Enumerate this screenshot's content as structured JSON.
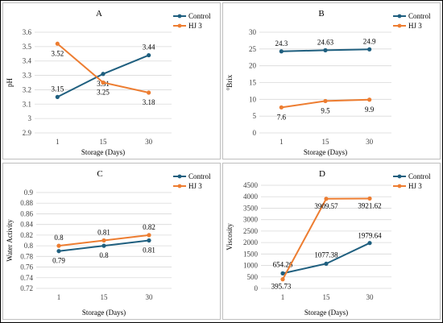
{
  "colors": {
    "control": "#1f5f7f",
    "hj3": "#ed7d31",
    "grid": "#d9d9d9"
  },
  "chart_data": [
    {
      "type": "line",
      "title": "A",
      "xlabel": "Storage (Days)",
      "ylabel": "pH",
      "categories": [
        "1",
        "15",
        "30"
      ],
      "ylim": [
        2.9,
        3.6
      ],
      "yticks": [
        "2.9",
        "3",
        "3.1",
        "3.2",
        "3.3",
        "3.4",
        "3.5",
        "3.6"
      ],
      "legend": "top-right",
      "series": [
        {
          "name": "Control",
          "values": [
            3.15,
            3.31,
            3.44
          ],
          "labels": [
            "3.15",
            "3.31",
            "3.44"
          ]
        },
        {
          "name": "HJ 3",
          "values": [
            3.52,
            3.25,
            3.18
          ],
          "labels": [
            "3.52",
            "3.25",
            "3.18"
          ]
        }
      ]
    },
    {
      "type": "line",
      "title": "B",
      "xlabel": "Storage (Days)",
      "ylabel": "°Brix",
      "categories": [
        "1",
        "15",
        "30"
      ],
      "ylim": [
        0,
        30
      ],
      "yticks": [
        "0",
        "5",
        "10",
        "15",
        "20",
        "25",
        "30"
      ],
      "legend": "top-right",
      "series": [
        {
          "name": "Control",
          "values": [
            24.3,
            24.63,
            24.9
          ],
          "labels": [
            "24.3",
            "24.63",
            "24.9"
          ]
        },
        {
          "name": "HJ 3",
          "values": [
            7.6,
            9.5,
            9.9
          ],
          "labels": [
            "7.6",
            "9.5",
            "9.9"
          ]
        }
      ]
    },
    {
      "type": "line",
      "title": "C",
      "xlabel": "Storage (Days)",
      "ylabel": "Water Activity",
      "categories": [
        "1",
        "15",
        "30"
      ],
      "ylim": [
        0.72,
        0.9
      ],
      "yticks": [
        "0.72",
        "0.74",
        "0.76",
        "0.78",
        "0.8",
        "0.82",
        "0.84",
        "0.86",
        "0.88",
        "0.9"
      ],
      "legend": "top-right",
      "series": [
        {
          "name": "Control",
          "values": [
            0.79,
            0.8,
            0.81
          ],
          "labels": [
            "0.79",
            "0.8",
            "0.81"
          ]
        },
        {
          "name": "HJ 3",
          "values": [
            0.8,
            0.81,
            0.82
          ],
          "labels": [
            "0.8",
            "0.81",
            "0.82"
          ]
        }
      ]
    },
    {
      "type": "line",
      "title": "D",
      "xlabel": "Storage (Days)",
      "ylabel": "Viscosity",
      "categories": [
        "1",
        "15",
        "30"
      ],
      "ylim": [
        0,
        4500
      ],
      "yticks": [
        "0",
        "500",
        "1000",
        "1500",
        "2000",
        "2500",
        "3000",
        "3500",
        "4000",
        "4500"
      ],
      "legend": "top-right",
      "series": [
        {
          "name": "Control",
          "values": [
            654.26,
            1077.38,
            1979.64
          ],
          "labels": [
            "654.26",
            "1077.38",
            "1979.64"
          ]
        },
        {
          "name": "HJ 3",
          "values": [
            395.73,
            3909.57,
            3921.62
          ],
          "labels": [
            "395.73",
            "3909.57",
            "3921.62"
          ]
        }
      ]
    }
  ]
}
